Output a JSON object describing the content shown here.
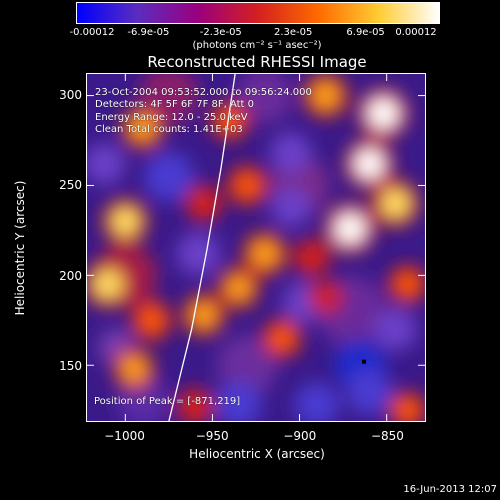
{
  "colorbar": {
    "tick_labels": [
      "-0.00012",
      "-6.9e-05",
      "-2.3e-05",
      "2.3e-05",
      "6.9e-05",
      "0.00012"
    ],
    "units": "(photons cm⁻² s⁻¹ asec⁻²)",
    "colors": [
      "#0000ff",
      "#5a2dbf",
      "#9a007e",
      "#d42020",
      "#ff6a00",
      "#ffcc33",
      "#ffffff"
    ]
  },
  "image": {
    "title": "Reconstructed RHESSI Image",
    "info_lines": [
      "23-Oct-2004 09:53:52.000 to 09:56:24.000",
      "Detectors: 4F 5F 6F 7F 8F, Att 0",
      "Energy Range: 12.0 - 25.0 keV",
      "Clean    Total counts: 1.41E+03"
    ],
    "peak_label": "Position of Peak = [-871,219]"
  },
  "chart_data": {
    "type": "heatmap",
    "title": "Reconstructed RHESSI Image",
    "xlabel": "Heliocentric X (arcsec)",
    "ylabel": "Heliocentric Y (arcsec)",
    "xlim": [
      -1022,
      -828
    ],
    "ylim": [
      119,
      312
    ],
    "x_ticks": [
      -1000,
      -950,
      -900,
      -850
    ],
    "y_ticks": [
      150,
      200,
      250,
      300
    ],
    "x_tick_labels": [
      "−1000",
      "−950",
      "−900",
      "−850"
    ],
    "y_tick_labels": [
      "150",
      "200",
      "250",
      "300"
    ],
    "colorbar_range": [
      -0.00012,
      0.00012
    ],
    "peak_position": [
      -871,
      219
    ],
    "hot_spots": [
      {
        "x": -990,
        "y": 282,
        "v": 0.75
      },
      {
        "x": -1000,
        "y": 230,
        "v": 0.85
      },
      {
        "x": -1010,
        "y": 195,
        "v": 0.9
      },
      {
        "x": -985,
        "y": 175,
        "v": 0.7
      },
      {
        "x": -995,
        "y": 148,
        "v": 0.72
      },
      {
        "x": -940,
        "y": 286,
        "v": 0.62
      },
      {
        "x": -930,
        "y": 250,
        "v": 0.68
      },
      {
        "x": -955,
        "y": 240,
        "v": 0.55
      },
      {
        "x": -920,
        "y": 212,
        "v": 0.8
      },
      {
        "x": -935,
        "y": 193,
        "v": 0.72
      },
      {
        "x": -955,
        "y": 178,
        "v": 0.75
      },
      {
        "x": -910,
        "y": 165,
        "v": 0.65
      },
      {
        "x": -960,
        "y": 127,
        "v": 0.55
      },
      {
        "x": -885,
        "y": 300,
        "v": 0.82
      },
      {
        "x": -852,
        "y": 290,
        "v": 1.0
      },
      {
        "x": -860,
        "y": 262,
        "v": 0.95
      },
      {
        "x": -871,
        "y": 226,
        "v": 1.0
      },
      {
        "x": -845,
        "y": 240,
        "v": 0.9
      },
      {
        "x": -893,
        "y": 210,
        "v": 0.55
      },
      {
        "x": -885,
        "y": 188,
        "v": 0.45
      },
      {
        "x": -838,
        "y": 195,
        "v": 0.62
      },
      {
        "x": -838,
        "y": 125,
        "v": 0.6
      }
    ],
    "cold_spots": [
      {
        "x": -975,
        "y": 255,
        "v": -0.9
      },
      {
        "x": -1012,
        "y": 262,
        "v": -0.55
      },
      {
        "x": -958,
        "y": 212,
        "v": -0.65
      },
      {
        "x": -905,
        "y": 268,
        "v": -0.55
      },
      {
        "x": -905,
        "y": 238,
        "v": -0.5
      },
      {
        "x": -898,
        "y": 185,
        "v": -0.55
      },
      {
        "x": -865,
        "y": 150,
        "v": -1.0
      },
      {
        "x": -890,
        "y": 128,
        "v": -0.7
      },
      {
        "x": -935,
        "y": 128,
        "v": -0.75
      },
      {
        "x": -1005,
        "y": 160,
        "v": -0.35
      },
      {
        "x": -845,
        "y": 170,
        "v": -0.6
      },
      {
        "x": -860,
        "y": 135,
        "v": -0.75
      }
    ]
  },
  "footer": {
    "date": "16-Jun-2013 12:07"
  }
}
